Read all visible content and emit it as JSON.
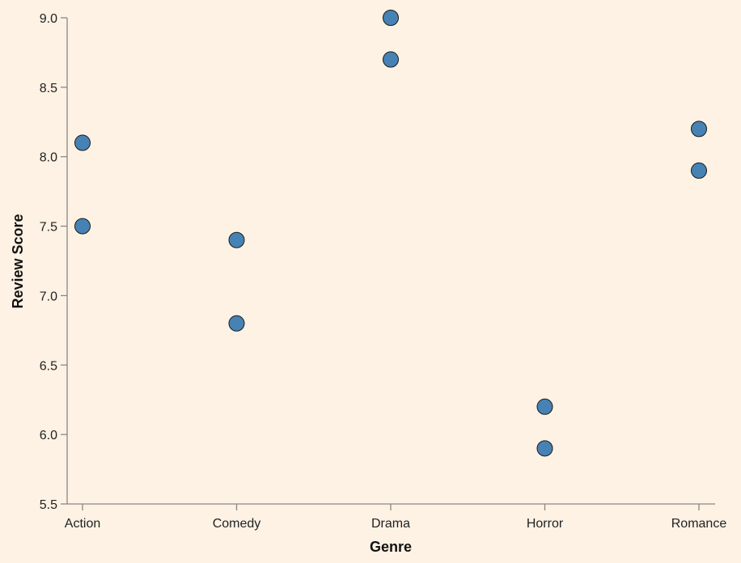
{
  "chart_data": {
    "type": "scatter",
    "title": "",
    "xlabel": "Genre",
    "ylabel": "Review Score",
    "categories": [
      "Action",
      "Comedy",
      "Drama",
      "Horror",
      "Romance"
    ],
    "ylim": [
      5.5,
      9.0
    ],
    "yticks": [
      "5.5",
      "6.0",
      "6.5",
      "7.0",
      "7.5",
      "8.0",
      "8.5",
      "9.0"
    ],
    "grid": false,
    "point_color": "#4682b4",
    "points": [
      {
        "x": "Action",
        "y": 8.1
      },
      {
        "x": "Action",
        "y": 7.5
      },
      {
        "x": "Comedy",
        "y": 7.4
      },
      {
        "x": "Comedy",
        "y": 6.8
      },
      {
        "x": "Drama",
        "y": 9.0
      },
      {
        "x": "Drama",
        "y": 8.7
      },
      {
        "x": "Horror",
        "y": 6.2
      },
      {
        "x": "Horror",
        "y": 5.9
      },
      {
        "x": "Romance",
        "y": 8.2
      },
      {
        "x": "Romance",
        "y": 7.9
      }
    ]
  }
}
